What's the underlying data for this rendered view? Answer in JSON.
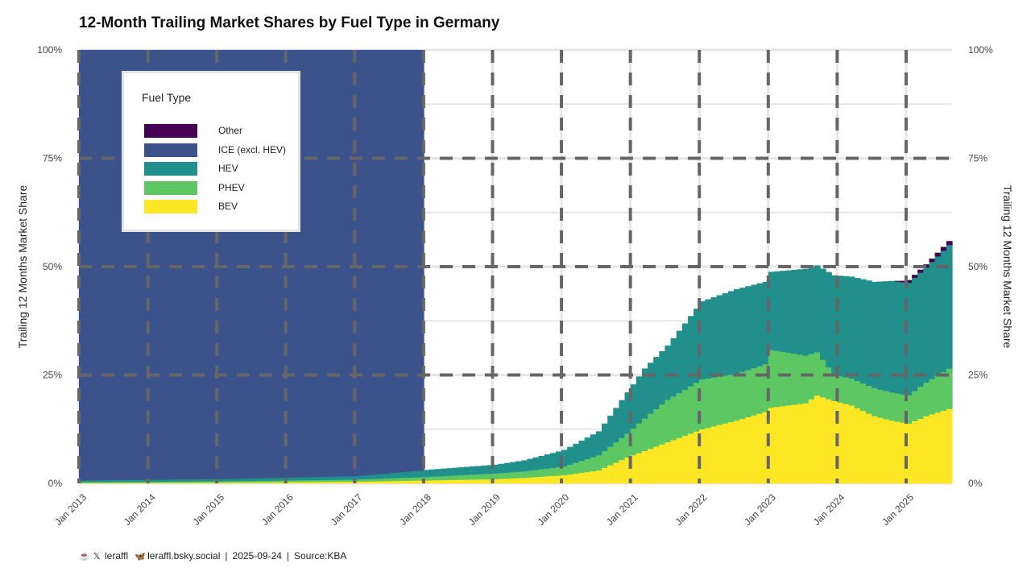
{
  "chart_data": {
    "type": "area",
    "title": "12-Month Trailing Market Shares by Fuel Type in Germany",
    "ylabel_left": "Trailing 12 Months Market Share",
    "ylabel_right": "Trailing 12 Months Market Share",
    "y_ticks": [
      "0%",
      "25%",
      "50%",
      "75%",
      "100%"
    ],
    "ylim": [
      0,
      100
    ],
    "x_ticks": [
      "Jan 2013",
      "Jan 2014",
      "Jan 2015",
      "Jan 2016",
      "Jan 2017",
      "Jan 2018",
      "Jan 2019",
      "Jan 2020",
      "Jan 2021",
      "Jan 2022",
      "Jan 2023",
      "Jan 2024",
      "Jan 2025"
    ],
    "x_start": "2013-01",
    "x_end": "2025-08",
    "stack_order": [
      "BEV",
      "PHEV",
      "HEV",
      "ICE (excl. HEV)",
      "Other"
    ],
    "colors": {
      "Other": "#440154",
      "ICE (excl. HEV)": "#3b528b",
      "HEV": "#21908c",
      "PHEV": "#5dc863",
      "BEV": "#fde725"
    },
    "series_keypoints": {
      "BEV": [
        [
          "2013-01",
          0.1
        ],
        [
          "2015-01",
          0.2
        ],
        [
          "2017-01",
          0.4
        ],
        [
          "2018-01",
          0.7
        ],
        [
          "2019-01",
          1.0
        ],
        [
          "2019-06",
          1.3
        ],
        [
          "2020-01",
          1.9
        ],
        [
          "2020-07",
          3.0
        ],
        [
          "2020-12",
          6.0
        ],
        [
          "2021-03",
          7.5
        ],
        [
          "2021-07",
          9.5
        ],
        [
          "2022-01",
          12.5
        ],
        [
          "2022-07",
          14.5
        ],
        [
          "2022-12",
          16.5
        ],
        [
          "2023-01",
          17.5
        ],
        [
          "2023-07",
          18.5
        ],
        [
          "2023-09",
          20.3
        ],
        [
          "2023-12",
          19.0
        ],
        [
          "2024-03",
          18.0
        ],
        [
          "2024-07",
          15.5
        ],
        [
          "2024-10",
          14.5
        ],
        [
          "2025-01",
          13.8
        ],
        [
          "2025-04",
          15.5
        ],
        [
          "2025-08",
          17.2
        ]
      ],
      "PHEV": [
        [
          "2013-01",
          0.2
        ],
        [
          "2015-01",
          0.3
        ],
        [
          "2017-01",
          0.5
        ],
        [
          "2018-01",
          0.8
        ],
        [
          "2019-01",
          1.3
        ],
        [
          "2019-06",
          1.5
        ],
        [
          "2020-01",
          2.0
        ],
        [
          "2020-07",
          3.5
        ],
        [
          "2020-12",
          5.5
        ],
        [
          "2021-03",
          7.5
        ],
        [
          "2021-07",
          9.8
        ],
        [
          "2022-01",
          11.5
        ],
        [
          "2022-07",
          10.8
        ],
        [
          "2022-12",
          11.0
        ],
        [
          "2023-01",
          13.3
        ],
        [
          "2023-07",
          11.0
        ],
        [
          "2023-09",
          10.0
        ],
        [
          "2023-12",
          6.0
        ],
        [
          "2024-03",
          6.2
        ],
        [
          "2024-07",
          6.5
        ],
        [
          "2024-10",
          6.5
        ],
        [
          "2025-01",
          6.5
        ],
        [
          "2025-04",
          7.8
        ],
        [
          "2025-08",
          9.3
        ]
      ],
      "HEV": [
        [
          "2013-01",
          0.4
        ],
        [
          "2015-01",
          0.5
        ],
        [
          "2017-01",
          0.8
        ],
        [
          "2018-01",
          1.6
        ],
        [
          "2019-01",
          2.0
        ],
        [
          "2019-06",
          2.5
        ],
        [
          "2020-01",
          3.8
        ],
        [
          "2020-07",
          5.5
        ],
        [
          "2020-12",
          9.5
        ],
        [
          "2021-03",
          11.5
        ],
        [
          "2021-07",
          12.5
        ],
        [
          "2022-01",
          18.0
        ],
        [
          "2022-07",
          19.5
        ],
        [
          "2022-12",
          19.0
        ],
        [
          "2023-01",
          18.0
        ],
        [
          "2023-07",
          20.0
        ],
        [
          "2023-09",
          20.0
        ],
        [
          "2023-12",
          23.0
        ],
        [
          "2024-03",
          23.5
        ],
        [
          "2024-07",
          24.5
        ],
        [
          "2024-10",
          25.7
        ],
        [
          "2025-01",
          26.0
        ],
        [
          "2025-04",
          26.5
        ],
        [
          "2025-08",
          28.5
        ]
      ],
      "Other": [
        [
          "2013-01",
          0.0
        ],
        [
          "2024-10",
          0.0
        ],
        [
          "2024-12",
          0.3
        ],
        [
          "2025-01",
          0.6
        ],
        [
          "2025-08",
          0.9
        ]
      ]
    }
  },
  "legend": {
    "title": "Fuel Type",
    "items": [
      {
        "label": "Other",
        "color": "#440154"
      },
      {
        "label": "ICE (excl. HEV)",
        "color": "#3b528b"
      },
      {
        "label": "HEV",
        "color": "#21908c"
      },
      {
        "label": "PHEV",
        "color": "#5dc863"
      },
      {
        "label": "BEV",
        "color": "#fde725"
      }
    ]
  },
  "footer": {
    "twitter_handle": "leraffl",
    "bsky_handle": "leraffl.bsky.social",
    "date": "2025-09-24",
    "source": "Source:KBA",
    "sep": "|"
  }
}
